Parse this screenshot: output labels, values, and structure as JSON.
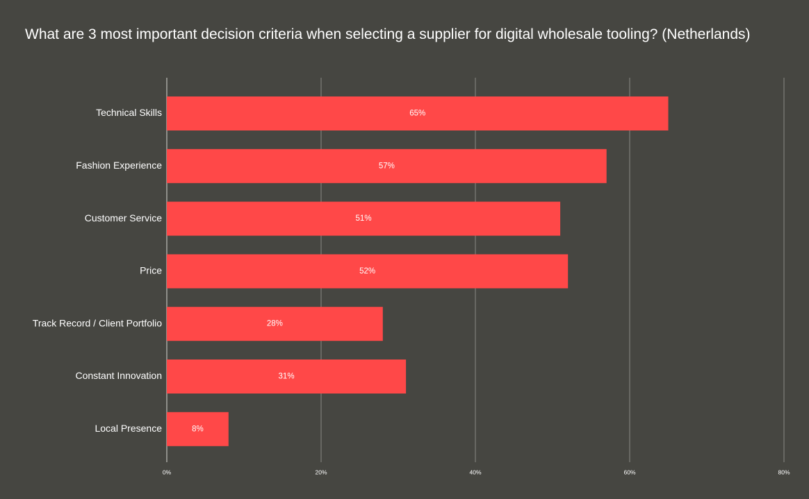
{
  "chart_data": {
    "type": "bar",
    "orientation": "horizontal",
    "title": "What are 3 most important decision criteria when selecting a supplier for digital wholesale tooling? (Netherlands)",
    "categories": [
      "Technical Skills",
      "Fashion Experience",
      "Customer Service",
      "Price",
      "Track Record / Client Portfolio",
      "Constant Innovation",
      "Local Presence"
    ],
    "values": [
      65,
      57,
      51,
      52,
      28,
      31,
      8
    ],
    "value_labels": [
      "65%",
      "57%",
      "51%",
      "52%",
      "28%",
      "31%",
      "8%"
    ],
    "xlabel": "",
    "ylabel": "",
    "xlim": [
      0,
      80
    ],
    "x_ticks": [
      0,
      20,
      40,
      60,
      80
    ],
    "x_tick_labels": [
      "0%",
      "20%",
      "40%",
      "60%",
      "80%"
    ],
    "grid": true,
    "legend": "none",
    "colors": {
      "bar": "#ff4848",
      "background": "#464641",
      "gridline": "#8a8a85",
      "text": "#ffffff"
    }
  }
}
